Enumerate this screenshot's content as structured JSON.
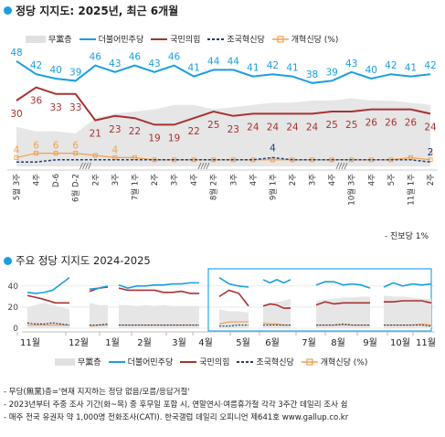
{
  "chart_data": [
    {
      "type": "line",
      "title": "정당 지지도: 2025년, 최근 6개월",
      "x": [
        "5월 3주",
        "4주",
        "D-6",
        "6월 D-2",
        "2주",
        "3주",
        "7월 1주",
        "2주",
        "3주",
        "4주",
        "8월 2주",
        "3주",
        "4주",
        "9월 1주",
        "2주",
        "3주",
        "4주",
        "10월 3주",
        "4주",
        "5주",
        "11월 1주",
        "2주"
      ],
      "ylim": [
        0,
        55
      ],
      "series": [
        {
          "name": "무당층",
          "color": "#e3e3e3",
          "values": [
            18,
            16,
            16,
            15,
            22,
            24,
            25,
            26,
            28,
            28,
            26,
            27,
            28,
            29,
            29,
            30,
            30,
            31,
            30,
            30,
            29,
            28
          ]
        },
        {
          "name": "더불어민주당",
          "color": "#1a9ee0",
          "values": [
            48,
            42,
            40,
            39,
            46,
            43,
            46,
            43,
            46,
            41,
            44,
            44,
            41,
            42,
            41,
            38,
            39,
            43,
            40,
            42,
            41,
            42
          ]
        },
        {
          "name": "국민의힘",
          "color": "#a83232",
          "values": [
            30,
            36,
            33,
            33,
            21,
            23,
            22,
            19,
            19,
            22,
            25,
            23,
            24,
            24,
            24,
            24,
            25,
            25,
            26,
            26,
            26,
            24
          ]
        },
        {
          "name": "조국혁신당",
          "color": "#243d6e",
          "values": [
            2,
            2,
            3,
            3,
            3,
            3,
            3,
            3,
            3,
            3,
            3,
            3,
            3,
            4,
            3,
            3,
            3,
            3,
            3,
            3,
            3,
            2
          ]
        },
        {
          "name": "개혁신당",
          "color": "#f0a050",
          "values": [
            4,
            6,
            6,
            6,
            5,
            4,
            4,
            3,
            3,
            3,
            3,
            3,
            3,
            3,
            3,
            3,
            3,
            3,
            3,
            3,
            4,
            3
          ]
        }
      ],
      "labels": {
        "민주": [
          "48",
          "42",
          "40",
          "39",
          "46",
          "43",
          "46",
          "43",
          "46",
          "41",
          "44",
          "44",
          "41",
          "42",
          "41",
          "38",
          "39",
          "43",
          "40",
          "42",
          "41",
          "42"
        ],
        "국힘": [
          "30",
          "36",
          "33",
          "33",
          "21",
          "23",
          "22",
          "19",
          "19",
          "22",
          "25",
          "23",
          "24",
          "24",
          "24",
          "24",
          "25",
          "25",
          "26",
          "26",
          "26",
          "24"
        ],
        "개혁": [
          "4",
          "6",
          "6",
          "6",
          "",
          "4",
          "",
          "",
          "",
          "",
          "",
          "",
          "",
          "",
          "",
          "",
          "",
          "",
          "",
          "",
          "",
          "3"
        ],
        "조국": [
          "",
          "",
          "",
          "",
          "",
          "",
          "",
          "",
          "",
          "",
          "",
          "",
          "",
          "4",
          "",
          "",
          "",
          "",
          "",
          "",
          "",
          "2"
        ]
      },
      "legend": [
        "무黨층",
        "더불어민주당",
        "국민의힘",
        "조국혁신당",
        "개혁신당 (%)"
      ],
      "note": "- 진보당 1%"
    },
    {
      "type": "line",
      "title": "주요 정당 지지도 2024-2025",
      "x_labels": [
        "11월",
        "12월",
        "1월",
        "2월",
        "3월",
        "4월",
        "5월",
        "6월",
        "7월",
        "8월",
        "9월",
        "10월",
        "11월"
      ],
      "y_ticks": [
        0,
        20,
        40
      ],
      "ylim": [
        0,
        52
      ],
      "legend": [
        "무黨층",
        "더불어민주당",
        "국민의힘",
        "조국혁신당",
        "개혁신당 (%)"
      ],
      "segments": [
        {
          "minjoo": [
            34,
            33,
            34,
            36,
            42,
            48
          ],
          "ppp": [
            31,
            28,
            24,
            24
          ],
          "nobody": [
            20,
            22,
            24,
            22,
            20,
            18
          ],
          "cho": [
            5,
            4,
            4,
            5,
            4,
            3
          ],
          "gaehyuk": [
            3,
            3,
            3,
            3,
            3,
            3
          ]
        },
        {
          "minjoo": [
            37,
            38,
            40
          ],
          "ppp": [
            35,
            38,
            39
          ],
          "nobody": [
            24,
            22,
            22
          ],
          "cho": [
            3,
            3,
            4
          ],
          "gaehyuk": [
            2,
            3,
            3
          ]
        },
        {
          "minjoo": [
            41,
            38,
            40,
            40,
            41,
            41,
            42,
            42,
            43,
            43
          ],
          "ppp": [
            38,
            36,
            36,
            36,
            36,
            34,
            34,
            35,
            33,
            33
          ],
          "nobody": [
            22,
            22,
            21,
            22,
            21,
            22,
            21,
            21,
            21,
            21
          ],
          "cho": [
            3,
            3,
            3,
            3,
            3,
            3,
            3,
            3,
            3,
            3
          ],
          "gaehyuk": [
            3,
            3,
            3,
            3,
            3,
            3,
            3,
            3,
            3,
            3
          ]
        },
        {
          "minjoo": [
            48,
            42,
            40,
            39
          ],
          "ppp": [
            30,
            36,
            33,
            21
          ],
          "nobody": [
            18,
            16,
            16,
            15
          ],
          "cho": [
            2,
            2,
            3,
            3
          ],
          "gaehyuk": [
            4,
            6,
            6,
            6
          ]
        },
        {
          "minjoo": [
            46,
            43,
            46,
            43,
            46
          ],
          "ppp": [
            21,
            23,
            22,
            19,
            19
          ],
          "nobody": [
            22,
            24,
            25,
            26,
            28
          ],
          "cho": [
            3,
            3,
            3,
            3,
            3
          ],
          "gaehyuk": [
            5,
            4,
            4,
            3,
            3
          ]
        },
        {
          "minjoo": [
            41,
            44,
            44,
            41,
            42,
            41,
            38
          ],
          "ppp": [
            22,
            25,
            23,
            24,
            24,
            24,
            24
          ],
          "nobody": [
            26,
            27,
            28,
            29,
            29,
            30,
            30
          ],
          "cho": [
            3,
            3,
            3,
            4,
            3,
            3,
            3
          ],
          "gaehyuk": [
            3,
            3,
            3,
            3,
            3,
            3,
            3
          ]
        },
        {
          "minjoo": [
            39,
            43,
            40,
            42,
            41,
            42
          ],
          "ppp": [
            25,
            25,
            26,
            26,
            26,
            24
          ],
          "nobody": [
            31,
            30,
            30,
            29,
            28,
            28
          ],
          "cho": [
            3,
            3,
            3,
            3,
            3,
            2
          ],
          "gaehyuk": [
            3,
            3,
            3,
            3,
            4,
            3
          ]
        }
      ]
    }
  ],
  "footnotes": [
    "- 무당(無黨)층='현재 지지하는 정당 없음/모름/응답거절'",
    "- 2023년부터 주중 조사 기간(화~목) 중 후무일 포함 시, 연말연시·여름휴가철 각각 3주간 데일리 조사 쉼",
    "- 매주 전국 유권자 약 1,000명 전화조사(CATI). 한국갤럽 데일리 오피니언 제641호 www.gallup.co.kr"
  ]
}
